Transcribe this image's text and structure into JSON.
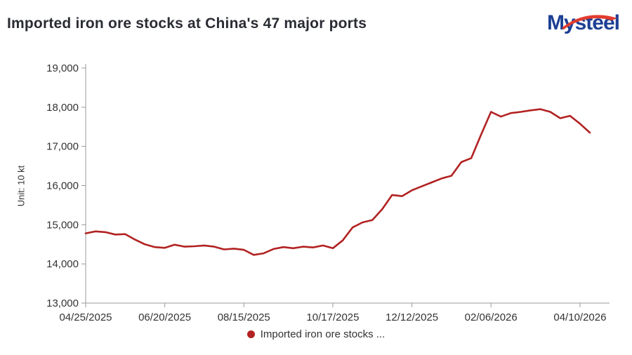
{
  "page": {
    "title": "Imported iron ore stocks at China's 47 major ports",
    "logo_text": "Mysteel",
    "unit_label": "Unit: 10 kt",
    "legend_label": "Imported iron ore stocks ...",
    "colors": {
      "series": "#b22222",
      "logo_blue": "#1d3f94",
      "logo_red": "#e23b2e",
      "axis": "#999999",
      "text": "#333333"
    }
  },
  "chart_data": {
    "type": "line",
    "title": "Imported iron ore stocks at China's 47 major ports",
    "xlabel": "",
    "ylabel": "Unit: 10 kt",
    "ylim": [
      13000,
      19000
    ],
    "y_tick_step": 1000,
    "grid": false,
    "legend_position": "bottom",
    "x_tick_labels": [
      "04/25/2025",
      "06/20/2025",
      "08/15/2025",
      "10/17/2025",
      "12/12/2025",
      "02/06/2026",
      "04/10/2026"
    ],
    "x_tick_indices": [
      0,
      8,
      16,
      25,
      33,
      41,
      50
    ],
    "series": [
      {
        "name": "Imported iron ore stocks ...",
        "color": "#b22222",
        "x": [
          "04/25/2025",
          "05/02/2025",
          "05/09/2025",
          "05/16/2025",
          "05/23/2025",
          "05/30/2025",
          "06/06/2025",
          "06/13/2025",
          "06/20/2025",
          "06/27/2025",
          "07/04/2025",
          "07/11/2025",
          "07/18/2025",
          "07/25/2025",
          "08/01/2025",
          "08/08/2025",
          "08/15/2025",
          "08/22/2025",
          "08/29/2025",
          "09/05/2025",
          "09/12/2025",
          "09/19/2025",
          "09/26/2025",
          "10/03/2025",
          "10/10/2025",
          "10/17/2025",
          "10/24/2025",
          "10/31/2025",
          "11/07/2025",
          "11/14/2025",
          "11/21/2025",
          "11/28/2025",
          "12/05/2025",
          "12/12/2025",
          "12/19/2025",
          "12/26/2025",
          "01/02/2026",
          "01/09/2026",
          "01/16/2026",
          "01/23/2026",
          "01/30/2026",
          "02/06/2026",
          "02/13/2026",
          "02/20/2026",
          "02/27/2026",
          "03/06/2026",
          "03/13/2026",
          "03/20/2026",
          "03/27/2026",
          "04/03/2026",
          "04/10/2026",
          "04/17/2026"
        ],
        "values": [
          14780,
          14830,
          14810,
          14750,
          14760,
          14620,
          14500,
          14430,
          14410,
          14490,
          14440,
          14450,
          14470,
          14440,
          14370,
          14390,
          14360,
          14230,
          14270,
          14380,
          14430,
          14400,
          14440,
          14420,
          14470,
          14400,
          14600,
          14930,
          15060,
          15120,
          15400,
          15760,
          15730,
          15880,
          15980,
          16080,
          16180,
          16250,
          16600,
          16700,
          17300,
          17880,
          17760,
          17850,
          17880,
          17920,
          17950,
          17880,
          17720,
          17780,
          17580,
          17350
        ]
      }
    ]
  }
}
